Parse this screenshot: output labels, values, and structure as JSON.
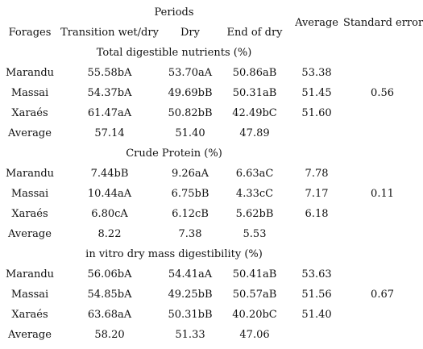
{
  "header": {
    "periods": "Periods",
    "forages": "Forages",
    "transition": "Transition wet/dry",
    "dry": "Dry",
    "end_of_dry": "End of dry",
    "average": "Average",
    "standard_error": "Standard error"
  },
  "sections": [
    {
      "title": "Total digestible nutrients (%)",
      "rows": [
        {
          "forage": "Marandu",
          "transition": "55.58bA",
          "dry": "53.70aA",
          "end": "50.86aB",
          "average": "53.38"
        },
        {
          "forage": "Massai",
          "transition": "54.37bA",
          "dry": "49.69bB",
          "end": "50.31aB",
          "average": "51.45"
        },
        {
          "forage": "Xaraés",
          "transition": "61.47aA",
          "dry": "50.82bB",
          "end": "42.49bC",
          "average": "51.60"
        },
        {
          "forage": "Average",
          "transition": "57.14",
          "dry": "51.40",
          "end": "47.89",
          "average": ""
        }
      ],
      "standard_error": "0.56"
    },
    {
      "title": "Crude Protein (%)",
      "rows": [
        {
          "forage": "Marandu",
          "transition": "7.44bB",
          "dry": "9.26aA",
          "end": "6.63aC",
          "average": "7.78"
        },
        {
          "forage": "Massai",
          "transition": "10.44aA",
          "dry": "6.75bB",
          "end": "4.33cC",
          "average": "7.17"
        },
        {
          "forage": "Xaraés",
          "transition": "6.80cA",
          "dry": "6.12cB",
          "end": "5.62bB",
          "average": "6.18"
        },
        {
          "forage": "Average",
          "transition": "8.22",
          "dry": "7.38",
          "end": "5.53",
          "average": ""
        }
      ],
      "standard_error": "0.11"
    },
    {
      "title": "in vitro dry mass digestibility (%)",
      "rows": [
        {
          "forage": "Marandu",
          "transition": "56.06bA",
          "dry": "54.41aA",
          "end": "50.41aB",
          "average": "53.63"
        },
        {
          "forage": "Massai",
          "transition": "54.85bA",
          "dry": "49.25bB",
          "end": "50.57aB",
          "average": "51.56"
        },
        {
          "forage": "Xaraés",
          "transition": "63.68aA",
          "dry": "50.31bB",
          "end": "40.20bC",
          "average": "51.40"
        },
        {
          "forage": "Average",
          "transition": "58.20",
          "dry": "51.33",
          "end": "47.06",
          "average": ""
        }
      ],
      "standard_error": "0.67"
    }
  ]
}
